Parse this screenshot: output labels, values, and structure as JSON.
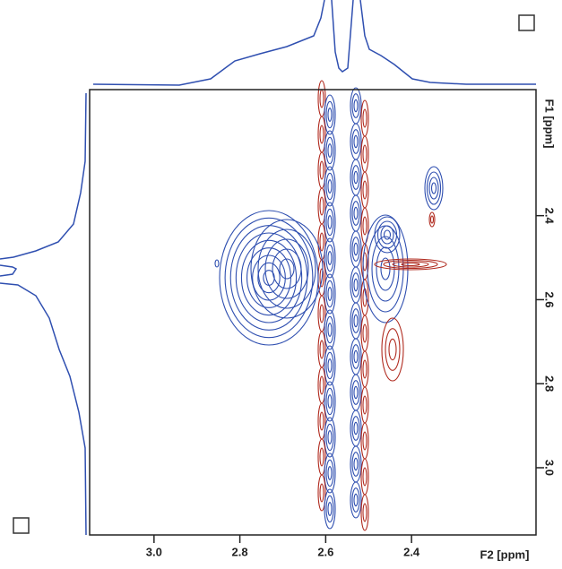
{
  "chart_data": {
    "type": "contour",
    "xlabel": "F2 [ppm]",
    "ylabel": "F1 [ppm]",
    "xlim": [
      3.15,
      2.11
    ],
    "ylim": [
      2.1,
      3.16
    ],
    "xticks": [
      {
        "value": 3,
        "label": "3.0"
      },
      2.8,
      2.6,
      2.4
    ],
    "yticks": [
      2.4,
      2.6,
      2.8,
      {
        "value": 3,
        "label": "3.0"
      }
    ],
    "colors": {
      "positive": "#2f4fb0",
      "negative": "#b02a1e",
      "frame": "#222"
    }
  }
}
